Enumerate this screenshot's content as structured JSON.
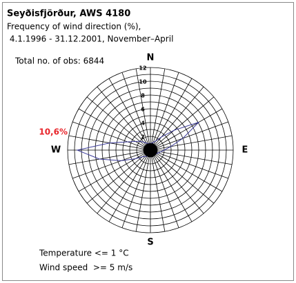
{
  "chart_data": {
    "type": "windrose",
    "title": "Seyðisfjörður, AWS 4180",
    "subtitle": [
      "Frequency of wind direction (%),",
      " 4.1.1996 - 31.12.2001, November–April"
    ],
    "annotation": "Total no. of obs: 6844",
    "notes": [
      "Temperature <= 1 °C",
      "Wind speed  >= 5 m/s"
    ],
    "direction_labels": [
      "N",
      "E",
      "S",
      "W"
    ],
    "x": [
      0,
      10,
      20,
      30,
      40,
      50,
      60,
      70,
      80,
      90,
      100,
      110,
      120,
      130,
      140,
      150,
      160,
      170,
      180,
      190,
      200,
      210,
      220,
      230,
      240,
      250,
      260,
      270,
      280,
      290,
      300,
      310,
      320,
      330,
      340,
      350
    ],
    "values": [
      1.0,
      1.0,
      1.2,
      1.5,
      2.5,
      4.5,
      8.1,
      5.0,
      3.0,
      2.0,
      1.5,
      1.2,
      1.0,
      0.8,
      0.8,
      0.7,
      0.7,
      0.7,
      0.8,
      0.8,
      0.9,
      1.0,
      1.2,
      1.5,
      2.5,
      4.5,
      7.5,
      10.6,
      6.0,
      3.5,
      2.5,
      2.0,
      1.5,
      1.2,
      1.0,
      1.0
    ],
    "value_labels": [
      null,
      null,
      null,
      null,
      null,
      null,
      null,
      null,
      null,
      null,
      null,
      null,
      null,
      null,
      null,
      null,
      null,
      null,
      null,
      null,
      null,
      null,
      null,
      null,
      null,
      null,
      null,
      "10,6%",
      null,
      null,
      null,
      null,
      null,
      null,
      null,
      null
    ],
    "color": "#3b3b9a",
    "rlim": [
      0,
      12
    ],
    "rticks": [
      2,
      4,
      6,
      8,
      10,
      12
    ],
    "grid": true
  }
}
